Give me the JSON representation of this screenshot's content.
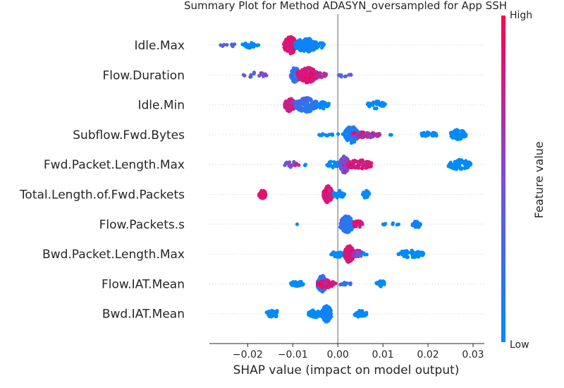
{
  "chart_data": {
    "type": "scatter",
    "subtype": "shap-beeswarm",
    "title": "Summary Plot for Method ADASYN_oversampled for App SSH",
    "xlabel": "SHAP value (impact on model output)",
    "xlim": [
      -0.0285,
      0.0325
    ],
    "xticks": [
      -0.02,
      -0.01,
      0.0,
      0.01,
      0.02,
      0.03
    ],
    "xtick_labels": [
      "−0.02",
      "−0.01",
      "0.00",
      "0.01",
      "0.02",
      "0.03"
    ],
    "grid": "dotted-horizontal",
    "zero_line": true,
    "colorbar": {
      "title": "Feature value",
      "high_label": "High",
      "low_label": "Low",
      "low_color": "#008afb",
      "high_color": "#ff0052"
    },
    "features": [
      {
        "name": "Idle.Max",
        "clusters": [
          {
            "min": -0.0265,
            "max": -0.022,
            "n": 8,
            "h": 0.25,
            "c": 0.3
          },
          {
            "min": -0.0215,
            "max": -0.0175,
            "n": 22,
            "h": 0.35,
            "c": 0.0
          },
          {
            "min": -0.012,
            "max": -0.009,
            "n": 140,
            "h": 1.0,
            "c": 0.85
          },
          {
            "min": -0.0095,
            "max": -0.0045,
            "n": 160,
            "h": 0.85,
            "c": 0.05
          },
          {
            "min": -0.0045,
            "max": -0.003,
            "n": 12,
            "h": 0.35,
            "c": 0.0
          }
        ]
      },
      {
        "name": "Flow.Duration",
        "clusters": [
          {
            "min": -0.0215,
            "max": -0.0155,
            "n": 16,
            "h": 0.3,
            "c": 0.45
          },
          {
            "min": -0.0105,
            "max": -0.0085,
            "n": 70,
            "h": 0.9,
            "c": 0.2
          },
          {
            "min": -0.009,
            "max": -0.0045,
            "n": 150,
            "h": 0.9,
            "c": 0.85
          },
          {
            "min": -0.0045,
            "max": -0.0025,
            "n": 20,
            "h": 0.35,
            "c": 0.7
          },
          {
            "min": 0.0,
            "max": 0.003,
            "n": 10,
            "h": 0.25,
            "c": 0.4
          }
        ]
      },
      {
        "name": "Idle.Min",
        "clusters": [
          {
            "min": -0.0118,
            "max": -0.0095,
            "n": 90,
            "h": 0.85,
            "c": 0.8
          },
          {
            "min": -0.0095,
            "max": -0.0045,
            "n": 160,
            "h": 0.85,
            "c": 0.2
          },
          {
            "min": -0.0045,
            "max": -0.002,
            "n": 25,
            "h": 0.45,
            "c": 0.0
          },
          {
            "min": 0.0065,
            "max": 0.0105,
            "n": 35,
            "h": 0.45,
            "c": 0.0
          }
        ]
      },
      {
        "name": "Subflow.Fwd.Bytes",
        "clusters": [
          {
            "min": -0.0045,
            "max": 0.0015,
            "n": 14,
            "h": 0.15,
            "c": 0.0
          },
          {
            "min": 0.0015,
            "max": 0.0045,
            "n": 150,
            "h": 1.0,
            "c": 0.1
          },
          {
            "min": 0.003,
            "max": 0.0095,
            "n": 60,
            "h": 0.4,
            "c": 0.7
          },
          {
            "min": 0.0115,
            "max": 0.012,
            "n": 2,
            "h": 0.05,
            "c": 0.0
          },
          {
            "min": 0.0185,
            "max": 0.022,
            "n": 25,
            "h": 0.35,
            "c": 0.0
          },
          {
            "min": 0.025,
            "max": 0.0285,
            "n": 60,
            "h": 0.6,
            "c": 0.0
          }
        ]
      },
      {
        "name": "Fwd.Packet.Length.Max",
        "clusters": [
          {
            "min": -0.0122,
            "max": -0.0085,
            "n": 15,
            "h": 0.35,
            "c": 0.55
          },
          {
            "min": -0.0075,
            "max": -0.007,
            "n": 3,
            "h": 0.1,
            "c": 0.0
          },
          {
            "min": -0.0025,
            "max": 0.0005,
            "n": 25,
            "h": 0.4,
            "c": 0.0
          },
          {
            "min": 0.0005,
            "max": 0.0025,
            "n": 150,
            "h": 1.0,
            "c": 0.5
          },
          {
            "min": 0.002,
            "max": 0.0075,
            "n": 80,
            "h": 0.55,
            "c": 0.85
          },
          {
            "min": 0.0245,
            "max": 0.0295,
            "n": 70,
            "h": 0.6,
            "c": 0.0
          }
        ]
      },
      {
        "name": "Total.Length.of.Fwd.Packets",
        "clusters": [
          {
            "min": -0.0175,
            "max": -0.016,
            "n": 45,
            "h": 0.55,
            "c": 0.9
          },
          {
            "min": -0.0032,
            "max": -0.0012,
            "n": 140,
            "h": 1.0,
            "c": 0.85
          },
          {
            "min": -0.001,
            "max": 0.0015,
            "n": 40,
            "h": 0.45,
            "c": 0.0
          },
          {
            "min": 0.0055,
            "max": 0.007,
            "n": 25,
            "h": 0.45,
            "c": 0.0
          }
        ]
      },
      {
        "name": "Flow.Packets.s",
        "clusters": [
          {
            "min": -0.0095,
            "max": -0.009,
            "n": 1,
            "h": 0.05,
            "c": 0.0
          },
          {
            "min": 0.0005,
            "max": 0.0035,
            "n": 120,
            "h": 1.0,
            "c": 0.15
          },
          {
            "min": 0.0035,
            "max": 0.0055,
            "n": 30,
            "h": 0.4,
            "c": 0.85
          },
          {
            "min": 0.01,
            "max": 0.0135,
            "n": 8,
            "h": 0.15,
            "c": 0.0
          },
          {
            "min": 0.0165,
            "max": 0.0185,
            "n": 25,
            "h": 0.45,
            "c": 0.05
          }
        ]
      },
      {
        "name": "Bwd.Packet.Length.Max",
        "clusters": [
          {
            "min": -0.0015,
            "max": 0.0015,
            "n": 30,
            "h": 0.35,
            "c": 0.0
          },
          {
            "min": 0.0015,
            "max": 0.0035,
            "n": 130,
            "h": 1.0,
            "c": 0.85
          },
          {
            "min": 0.0035,
            "max": 0.0055,
            "n": 35,
            "h": 0.45,
            "c": 0.6
          },
          {
            "min": 0.0055,
            "max": 0.0065,
            "n": 5,
            "h": 0.15,
            "c": 0.0
          },
          {
            "min": 0.013,
            "max": 0.019,
            "n": 45,
            "h": 0.45,
            "c": 0.0
          }
        ]
      },
      {
        "name": "Flow.IAT.Mean",
        "clusters": [
          {
            "min": -0.0105,
            "max": -0.0075,
            "n": 30,
            "h": 0.35,
            "c": 0.0
          },
          {
            "min": -0.0045,
            "max": -0.0025,
            "n": 130,
            "h": 1.0,
            "c": 0.25
          },
          {
            "min": -0.0045,
            "max": -0.0005,
            "n": 60,
            "h": 0.5,
            "c": 0.85
          },
          {
            "min": 0.0005,
            "max": 0.003,
            "n": 15,
            "h": 0.25,
            "c": 0.3
          },
          {
            "min": 0.0085,
            "max": 0.0105,
            "n": 25,
            "h": 0.4,
            "c": 0.0
          }
        ]
      },
      {
        "name": "Bwd.IAT.Mean",
        "clusters": [
          {
            "min": -0.016,
            "max": -0.0125,
            "n": 35,
            "h": 0.4,
            "c": 0.0
          },
          {
            "min": -0.0065,
            "max": -0.0035,
            "n": 60,
            "h": 0.45,
            "c": 0.0
          },
          {
            "min": -0.0035,
            "max": -0.0015,
            "n": 150,
            "h": 1.0,
            "c": 0.05
          },
          {
            "min": 0.0035,
            "max": 0.0065,
            "n": 35,
            "h": 0.4,
            "c": 0.0
          }
        ]
      }
    ]
  }
}
